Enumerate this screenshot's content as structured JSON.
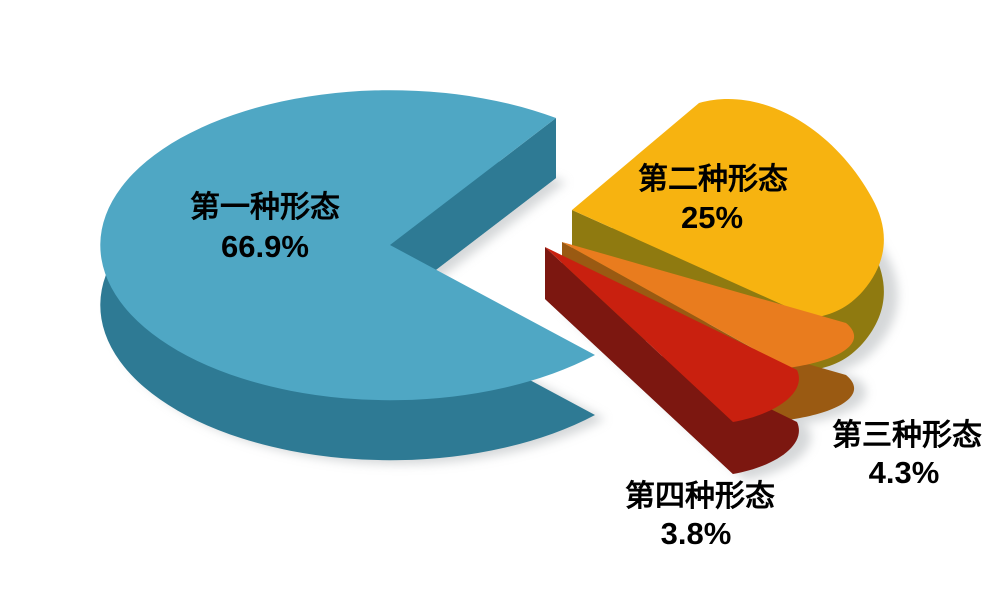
{
  "page": {
    "background": "#FFFFFF"
  },
  "chart_data": {
    "type": "pie",
    "style": "3d-exploded-pie",
    "title": "",
    "legend": "none",
    "background": "#FFFFFF",
    "text_color": "#000000",
    "labels_on_chart": true,
    "slices": [
      {
        "label": "第一种形态",
        "value": 66.9,
        "value_label": "66.9%",
        "top_color": "#4FA7C4",
        "side_color": "#2E7A94",
        "exploded": false
      },
      {
        "label": "第二种形态",
        "value": 25,
        "value_label": "25%",
        "top_color": "#F7B310",
        "side_color": "#8F7A10",
        "exploded": true
      },
      {
        "label": "第三种形态",
        "value": 4.3,
        "value_label": "4.3%",
        "top_color": "#E97C1E",
        "side_color": "#9A5A12",
        "exploded": true
      },
      {
        "label": "第四种形态",
        "value": 3.8,
        "value_label": "3.8%",
        "top_color": "#C9200F",
        "side_color": "#7C1710",
        "exploded": true
      }
    ]
  }
}
